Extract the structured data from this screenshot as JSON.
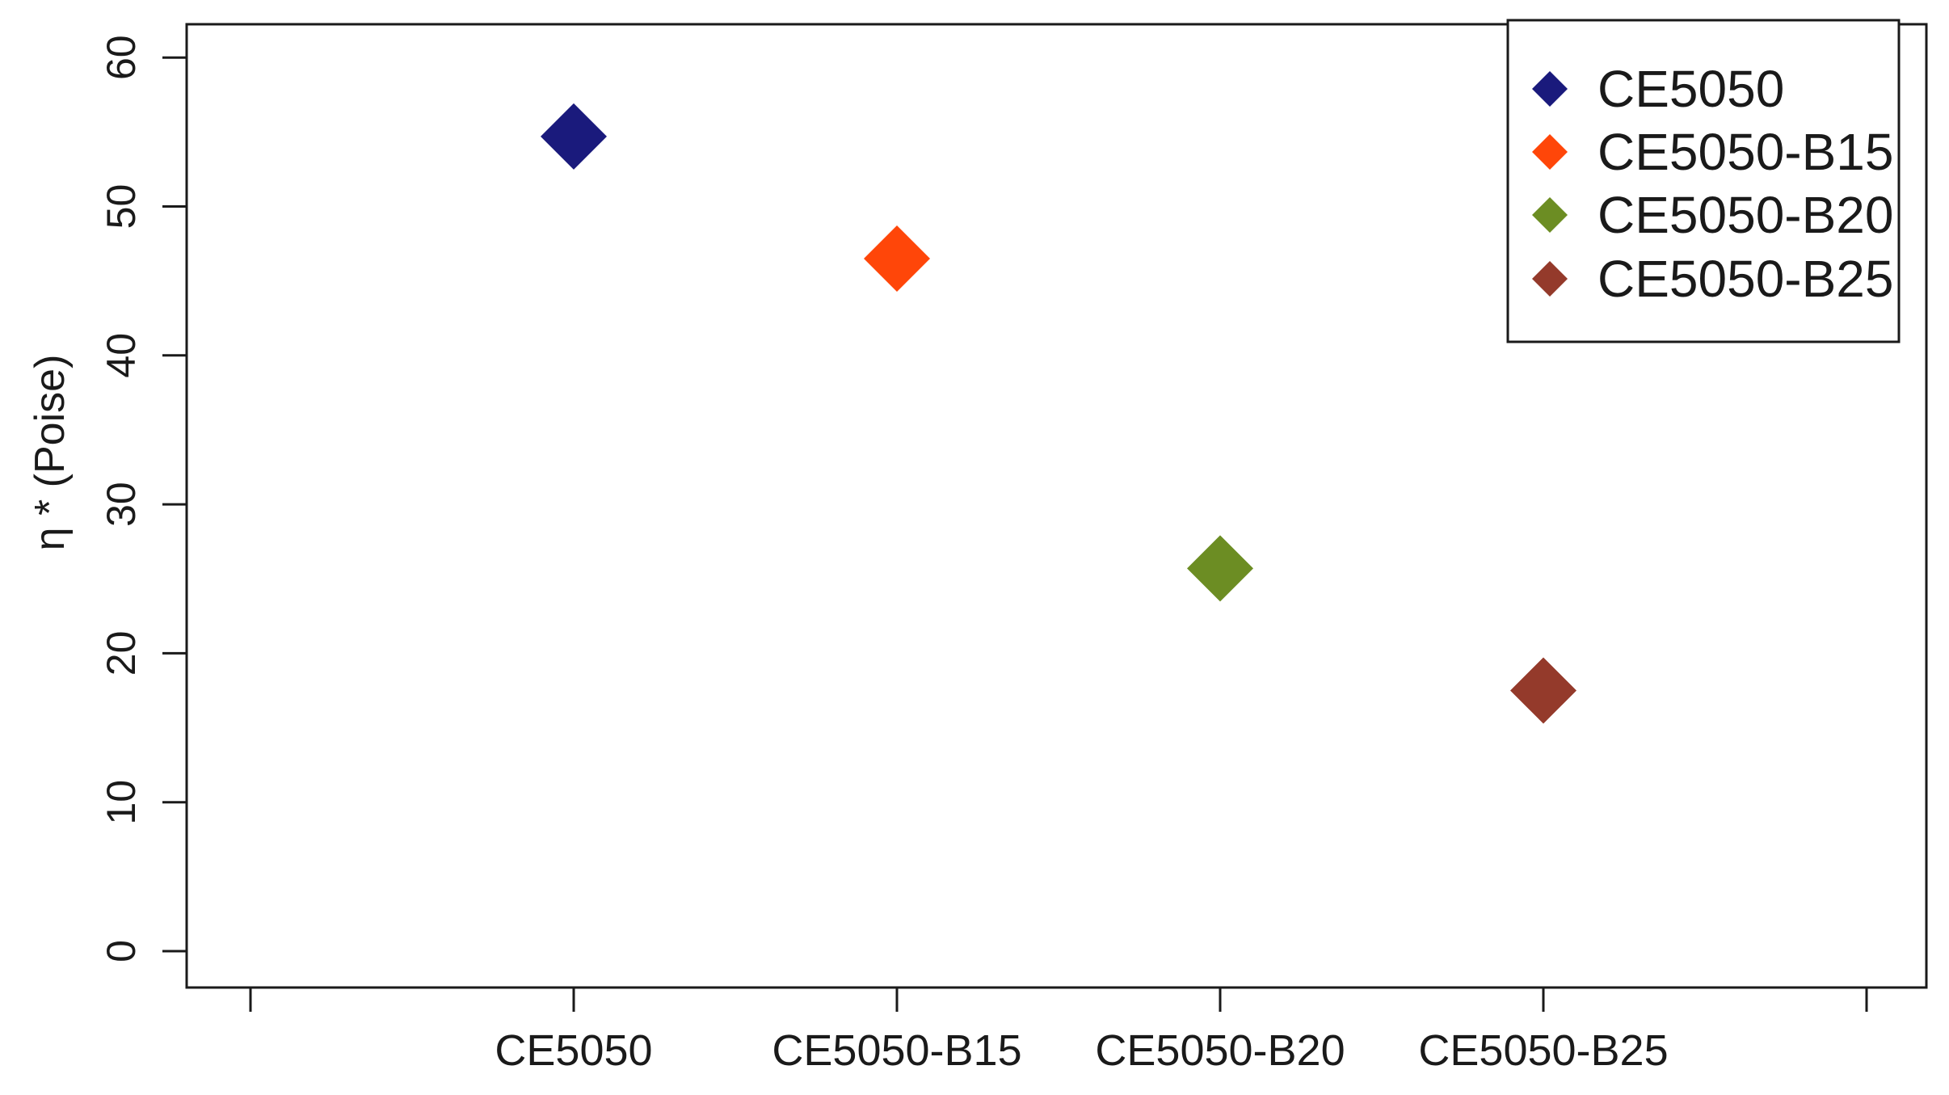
{
  "figure": {
    "background": "#FFFFFF",
    "axis_color": "#1A1A1A",
    "text_color": "#1A1A1A"
  },
  "chart_data": {
    "type": "scatter",
    "marker": "diamond",
    "title": "",
    "xlabel": "",
    "ylabel": "η * (Poise)",
    "categories": [
      "CE5050",
      "CE5050-B15",
      "CE5050-B20",
      "CE5050-B25"
    ],
    "series": [
      {
        "name": "CE5050",
        "color": "#1A1A7C",
        "category": "CE5050",
        "value": 54.7
      },
      {
        "name": "CE5050-B15",
        "color": "#FF4609",
        "category": "CE5050-B15",
        "value": 46.5
      },
      {
        "name": "CE5050-B20",
        "color": "#6C8D23",
        "category": "CE5050-B20",
        "value": 25.7
      },
      {
        "name": "CE5050-B25",
        "color": "#943A2B",
        "category": "CE5050-B25",
        "value": 17.5
      }
    ],
    "yticks": [
      0,
      10,
      20,
      30,
      40,
      50,
      60
    ],
    "ylim": [
      0,
      62.5
    ],
    "grid": false,
    "legend": {
      "position": "top-right",
      "entries": [
        {
          "label": "CE5050",
          "color": "#1A1A7C"
        },
        {
          "label": "CE5050-B15",
          "color": "#FF4609"
        },
        {
          "label": "CE5050-B20",
          "color": "#6C8D23"
        },
        {
          "label": "CE5050-B25",
          "color": "#943A2B"
        }
      ]
    }
  }
}
